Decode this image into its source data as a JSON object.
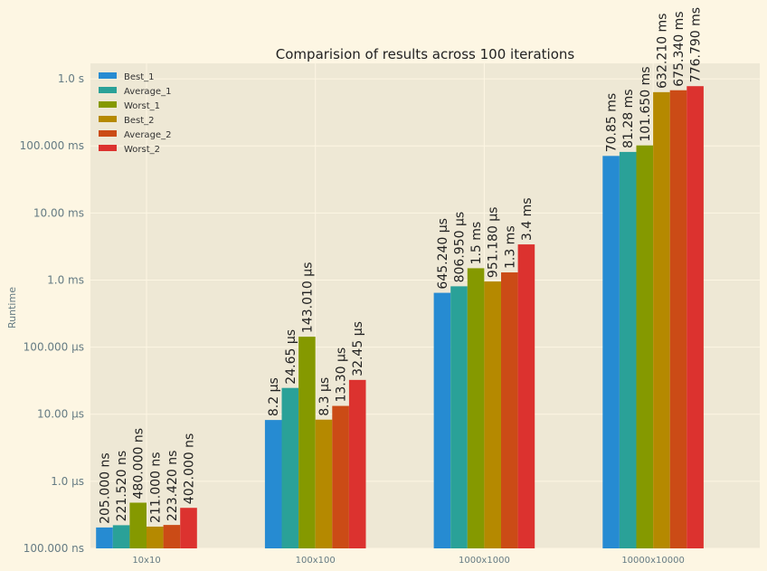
{
  "chart_data": {
    "type": "bar",
    "title": "Comparision of results across 100 iterations",
    "xlabel": "",
    "ylabel": "Runtime",
    "yscale": "log",
    "yunit": "s",
    "ylim": [
      1e-07,
      1.7
    ],
    "grid": true,
    "legend_position": "top-left",
    "categories": [
      "10x10",
      "100x100",
      "1000x1000",
      "10000x10000"
    ],
    "yticks": [
      {
        "value": 1e-07,
        "label": "100.000 ns"
      },
      {
        "value": 1e-06,
        "label": "1.0 µs"
      },
      {
        "value": 1e-05,
        "label": "10.00 µs"
      },
      {
        "value": 0.0001,
        "label": "100.000 µs"
      },
      {
        "value": 0.001,
        "label": "1.0 ms"
      },
      {
        "value": 0.01,
        "label": "10.00 ms"
      },
      {
        "value": 0.1,
        "label": "100.000 ms"
      },
      {
        "value": 1,
        "label": "1.0 s"
      }
    ],
    "series": [
      {
        "name": "Best_1",
        "color": "#268bd2",
        "values": [
          2.05e-07,
          8.2e-06,
          0.00064524,
          0.07085
        ],
        "labels": [
          "205.000 ns",
          "8.2 µs",
          "645.240 µs",
          "70.85 ms"
        ]
      },
      {
        "name": "Average_1",
        "color": "#2aa198",
        "values": [
          2.2152e-07,
          2.465e-05,
          0.00080695,
          0.08128
        ],
        "labels": [
          "221.520 ns",
          "24.65 µs",
          "806.950 µs",
          "81.28 ms"
        ]
      },
      {
        "name": "Worst_1",
        "color": "#859900",
        "values": [
          4.8e-07,
          0.00014301,
          0.0015,
          0.10165
        ],
        "labels": [
          "480.000 ns",
          "143.010 µs",
          "1.5 ms",
          "101.650 ms"
        ]
      },
      {
        "name": "Best_2",
        "color": "#b58900",
        "values": [
          2.11e-07,
          8.3e-06,
          0.00095118,
          0.63221
        ],
        "labels": [
          "211.000 ns",
          "8.3 µs",
          "951.180 µs",
          "632.210 ms"
        ]
      },
      {
        "name": "Average_2",
        "color": "#cb4b16",
        "values": [
          2.2342e-07,
          1.33e-05,
          0.0013,
          0.67534
        ],
        "labels": [
          "223.420 ns",
          "13.30 µs",
          "1.3 ms",
          "675.340 ms"
        ]
      },
      {
        "name": "Worst_2",
        "color": "#dc322f",
        "values": [
          4.02e-07,
          3.245e-05,
          0.0034,
          0.77679
        ],
        "labels": [
          "402.000 ns",
          "32.45 µs",
          "3.4 ms",
          "776.790 ms"
        ]
      }
    ]
  }
}
